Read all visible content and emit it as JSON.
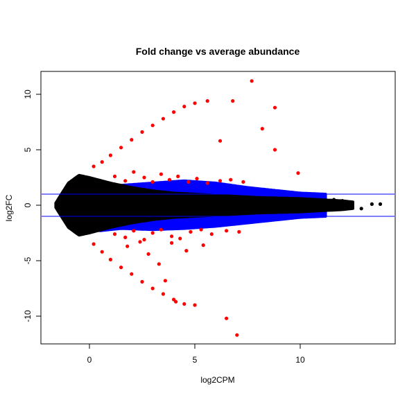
{
  "chart_data": {
    "type": "scatter",
    "title": "Fold change vs average abundance",
    "xlabel": "log2CPM",
    "ylabel": "log2FC",
    "xlim": [
      -2,
      14.5
    ],
    "ylim": [
      -12.5,
      12
    ],
    "x_ticks": [
      0,
      5,
      10
    ],
    "x_tick_labels": [
      "0",
      "5",
      "10"
    ],
    "y_ticks": [
      -10,
      -5,
      0,
      5,
      10
    ],
    "y_tick_labels": [
      "-10",
      "-5",
      "0",
      "5",
      "10"
    ],
    "grid": false,
    "reference_lines": {
      "orientation": "horizontal",
      "y": [
        1,
        -1
      ],
      "color": "#0000ff"
    },
    "colors": {
      "not_significant": "#000000",
      "significant_above_threshold": "#0000ff",
      "significant": "#ff0000"
    },
    "series": [
      {
        "color": "#ff0000",
        "points": [
          [
            0.2,
            3.5
          ],
          [
            0.6,
            3.9
          ],
          [
            1.0,
            4.5
          ],
          [
            1.5,
            5.2
          ],
          [
            2.0,
            5.9
          ],
          [
            2.5,
            6.6
          ],
          [
            3.0,
            7.2
          ],
          [
            3.5,
            7.8
          ],
          [
            4.0,
            8.4
          ],
          [
            4.5,
            8.9
          ],
          [
            5.0,
            9.2
          ],
          [
            5.6,
            9.4
          ],
          [
            0.2,
            -3.5
          ],
          [
            0.6,
            -4.2
          ],
          [
            1.0,
            -4.9
          ],
          [
            1.5,
            -5.6
          ],
          [
            2.0,
            -6.2
          ],
          [
            2.5,
            -6.9
          ],
          [
            3.0,
            -7.5
          ],
          [
            3.5,
            -8.0
          ],
          [
            4.0,
            -8.5
          ],
          [
            4.5,
            -8.9
          ],
          [
            5.0,
            -9.0
          ],
          [
            1.2,
            2.6
          ],
          [
            1.7,
            2.2
          ],
          [
            2.1,
            3.0
          ],
          [
            2.6,
            2.5
          ],
          [
            3.0,
            2.1
          ],
          [
            3.4,
            2.8
          ],
          [
            3.8,
            2.3
          ],
          [
            4.2,
            2.6
          ],
          [
            4.7,
            2.1
          ],
          [
            5.1,
            2.4
          ],
          [
            5.6,
            2.0
          ],
          [
            6.2,
            2.2
          ],
          [
            6.7,
            2.3
          ],
          [
            7.3,
            2.1
          ],
          [
            1.2,
            -2.6
          ],
          [
            1.7,
            -2.9
          ],
          [
            2.1,
            -2.3
          ],
          [
            2.6,
            -3.1
          ],
          [
            3.0,
            -2.5
          ],
          [
            3.4,
            -2.2
          ],
          [
            3.9,
            -2.8
          ],
          [
            4.3,
            -3.0
          ],
          [
            4.8,
            -2.4
          ],
          [
            5.3,
            -2.2
          ],
          [
            5.8,
            -2.6
          ],
          [
            6.5,
            -2.3
          ],
          [
            7.1,
            -2.4
          ],
          [
            6.2,
            5.8
          ],
          [
            6.8,
            9.4
          ],
          [
            7.7,
            11.2
          ],
          [
            8.2,
            6.9
          ],
          [
            8.8,
            8.8
          ],
          [
            8.8,
            5.0
          ],
          [
            9.9,
            2.9
          ],
          [
            6.5,
            -10.2
          ],
          [
            7.0,
            -11.7
          ],
          [
            3.6,
            -6.8
          ],
          [
            4.1,
            -8.7
          ],
          [
            2.8,
            -4.4
          ],
          [
            3.3,
            -5.3
          ],
          [
            1.8,
            -3.7
          ],
          [
            2.4,
            -3.3
          ],
          [
            3.9,
            -3.4
          ],
          [
            4.6,
            -4.1
          ],
          [
            5.4,
            -3.6
          ]
        ]
      }
    ],
    "bands": [
      {
        "color": "#000000",
        "x_start": -1.6,
        "x_end": 12.5,
        "upper": [
          [
            -1.6,
            0.2
          ],
          [
            -1.0,
            2.0
          ],
          [
            -0.5,
            2.7
          ],
          [
            0.0,
            2.5
          ],
          [
            1.0,
            2.0
          ],
          [
            2.0,
            1.6
          ],
          [
            3.0,
            1.3
          ],
          [
            4.0,
            1.1
          ],
          [
            6.0,
            0.9
          ],
          [
            8.0,
            0.7
          ],
          [
            10.0,
            0.6
          ],
          [
            11.0,
            0.5
          ],
          [
            12.0,
            0.4
          ],
          [
            12.5,
            0.3
          ]
        ],
        "lower": [
          [
            -1.6,
            -0.2
          ],
          [
            -1.0,
            -2.0
          ],
          [
            -0.5,
            -2.7
          ],
          [
            0.0,
            -2.5
          ],
          [
            1.0,
            -2.0
          ],
          [
            2.0,
            -1.6
          ],
          [
            3.0,
            -1.3
          ],
          [
            4.0,
            -1.1
          ],
          [
            6.0,
            -0.9
          ],
          [
            8.0,
            -0.7
          ],
          [
            10.0,
            -0.6
          ],
          [
            11.0,
            -0.5
          ],
          [
            12.0,
            -0.4
          ],
          [
            12.5,
            -0.3
          ]
        ]
      },
      {
        "color": "#0000ff",
        "x_start": 0.5,
        "x_end": 11.2,
        "upper": [
          [
            0.5,
            2.0
          ],
          [
            1.5,
            1.8
          ],
          [
            3.0,
            2.0
          ],
          [
            4.5,
            2.2
          ],
          [
            6.0,
            2.0
          ],
          [
            7.5,
            1.6
          ],
          [
            9.0,
            1.3
          ],
          [
            10.0,
            1.1
          ],
          [
            11.2,
            1.0
          ]
        ],
        "lower": [
          [
            0.5,
            -2.3
          ],
          [
            1.5,
            -2.1
          ],
          [
            3.0,
            -2.2
          ],
          [
            4.5,
            -2.1
          ],
          [
            6.0,
            -1.9
          ],
          [
            7.5,
            -1.6
          ],
          [
            9.0,
            -1.3
          ],
          [
            10.0,
            -1.1
          ],
          [
            11.2,
            -1.0
          ]
        ]
      }
    ]
  }
}
